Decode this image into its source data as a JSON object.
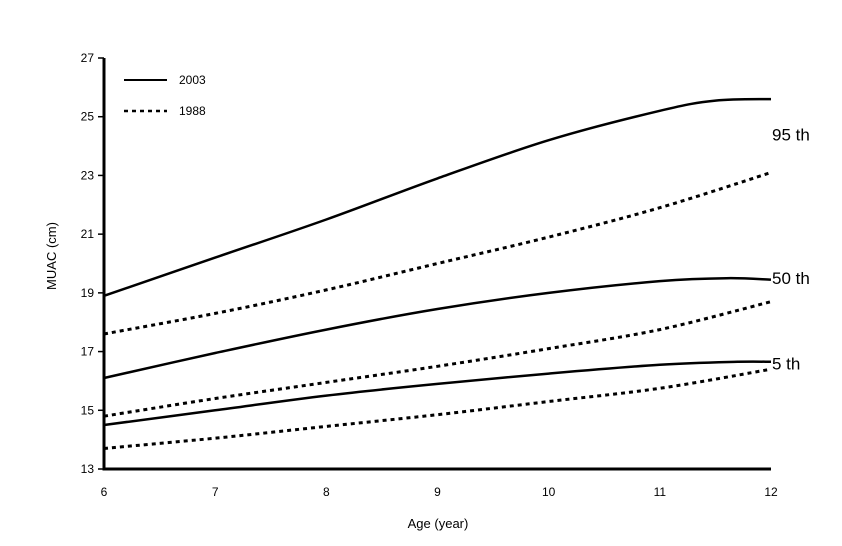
{
  "chart_data": {
    "type": "line",
    "title": "",
    "xlabel": "Age (year)",
    "ylabel": "MUAC (cm)",
    "xlim": [
      6,
      12
    ],
    "ylim": [
      13,
      27
    ],
    "x_ticks": [
      "6",
      "7",
      "8",
      "9",
      "10",
      "11",
      "12"
    ],
    "y_ticks": [
      "13",
      "15",
      "17",
      "19",
      "21",
      "23",
      "25",
      "27"
    ],
    "grid": false,
    "legend": {
      "placement": "top-left",
      "entries": [
        {
          "label": "2003",
          "style": "solid"
        },
        {
          "label": "1988",
          "style": "dotted"
        }
      ]
    },
    "percentile_labels": [
      {
        "text": "95 th",
        "y": 24.4
      },
      {
        "text": "50 th",
        "y": 19.5
      },
      {
        "text": "5 th",
        "y": 16.6
      }
    ],
    "series": [
      {
        "group": "2003",
        "style": "solid",
        "x": [
          6,
          7,
          8,
          9,
          10,
          11,
          11.5,
          12
        ],
        "y": [
          18.9,
          20.2,
          21.5,
          22.9,
          24.2,
          25.2,
          25.55,
          25.6
        ]
      },
      {
        "group": "1988",
        "style": "dotted",
        "x": [
          6,
          7,
          8,
          9,
          10,
          11,
          12
        ],
        "y": [
          17.6,
          18.3,
          19.1,
          20.0,
          20.9,
          21.9,
          23.1
        ]
      },
      {
        "group": "2003",
        "style": "solid",
        "x": [
          6,
          7,
          8,
          9,
          10,
          11,
          11.6,
          12
        ],
        "y": [
          16.1,
          16.95,
          17.75,
          18.45,
          19.0,
          19.4,
          19.5,
          19.45
        ]
      },
      {
        "group": "1988",
        "style": "dotted",
        "x": [
          6,
          7,
          8,
          9,
          10,
          11,
          12
        ],
        "y": [
          14.8,
          15.4,
          15.95,
          16.5,
          17.1,
          17.75,
          18.7
        ]
      },
      {
        "group": "2003",
        "style": "solid",
        "x": [
          6,
          7,
          8,
          9,
          10,
          11,
          11.7,
          12
        ],
        "y": [
          14.5,
          15.0,
          15.5,
          15.9,
          16.25,
          16.55,
          16.65,
          16.65
        ]
      },
      {
        "group": "1988",
        "style": "dotted",
        "x": [
          6,
          7,
          8,
          9,
          10,
          11,
          12
        ],
        "y": [
          13.7,
          14.05,
          14.45,
          14.85,
          15.3,
          15.75,
          16.4
        ]
      }
    ]
  }
}
